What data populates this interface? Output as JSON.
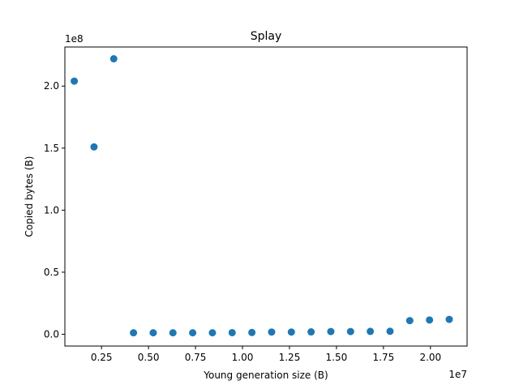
{
  "chart_data": {
    "type": "scatter",
    "title": "Splay",
    "xlabel": "Young generation size (B)",
    "ylabel": "Copied bytes (B)",
    "x_offset_label": "1e7",
    "y_offset_label": "1e8",
    "x_multiplier": 10000000,
    "y_multiplier": 100000000,
    "xlim": [
      0.055,
      2.195
    ],
    "ylim": [
      -0.095,
      2.315
    ],
    "x_ticks": [
      0.25,
      0.5,
      0.75,
      1.0,
      1.25,
      1.5,
      1.75,
      2.0
    ],
    "x_tick_labels": [
      "0.25",
      "0.50",
      "0.75",
      "1.00",
      "1.25",
      "1.50",
      "1.75",
      "2.00"
    ],
    "y_ticks": [
      0.0,
      0.5,
      1.0,
      1.5,
      2.0
    ],
    "y_tick_labels": [
      "0.0",
      "0.5",
      "1.0",
      "1.5",
      "2.0"
    ],
    "grid": false,
    "marker_color": "#1f77b4",
    "series": [
      {
        "x": [
          0.105,
          0.21,
          0.315,
          0.42,
          0.525,
          0.63,
          0.735,
          0.84,
          0.945,
          1.05,
          1.155,
          1.26,
          1.365,
          1.47,
          1.575,
          1.68,
          1.785,
          1.89,
          1.995,
          2.1
        ],
        "y": [
          2.04,
          1.51,
          2.22,
          0.012,
          0.012,
          0.012,
          0.012,
          0.012,
          0.013,
          0.014,
          0.018,
          0.018,
          0.019,
          0.022,
          0.022,
          0.023,
          0.024,
          0.11,
          0.115,
          0.12
        ]
      }
    ]
  }
}
